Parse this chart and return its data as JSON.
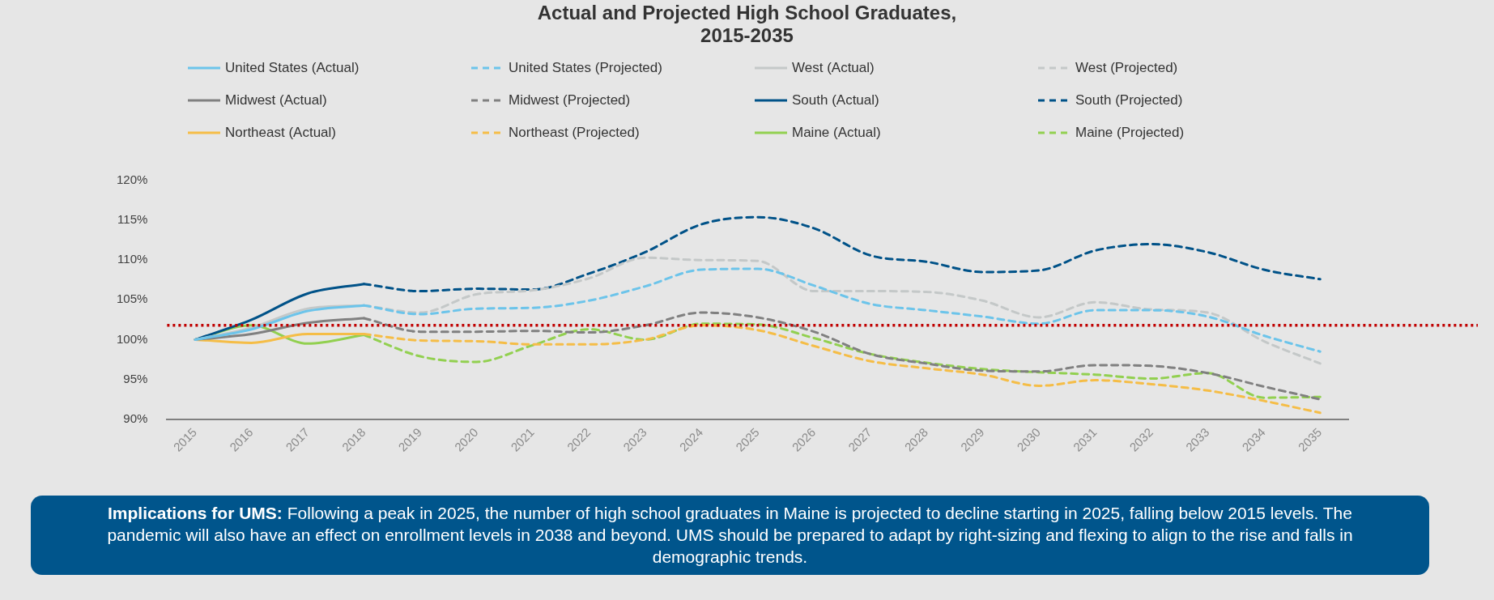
{
  "chart_data": {
    "type": "line",
    "title": "Actual and Projected High School Graduates,\n2015-2035",
    "categories": [
      "2015",
      "2016",
      "2017",
      "2018",
      "2019",
      "2020",
      "2021",
      "2022",
      "2023",
      "2024",
      "2025",
      "2026",
      "2027",
      "2028",
      "2029",
      "2030",
      "2031",
      "2032",
      "2033",
      "2034",
      "2035"
    ],
    "ylim": [
      90,
      120
    ],
    "yticks": [
      {
        "value": 90,
        "label": "90%"
      },
      {
        "value": 95,
        "label": "95%"
      },
      {
        "value": 100,
        "label": "100%"
      },
      {
        "value": 105,
        "label": "105%"
      },
      {
        "value": 110,
        "label": "110%"
      },
      {
        "value": 115,
        "label": "115%"
      },
      {
        "value": 120,
        "label": "120%"
      }
    ],
    "grid": false,
    "legend": "top",
    "marker": "none",
    "series": [
      {
        "name": "United States (Actual)",
        "color": "#6cc4ea",
        "line_style": "solid",
        "values": [
          100,
          101.3,
          103.6,
          104.3,
          null,
          null,
          null,
          null,
          null,
          null,
          null,
          null,
          null,
          null,
          null,
          null,
          null,
          null,
          null,
          null,
          null
        ]
      },
      {
        "name": "United States (Projected)",
        "color": "#6cc4ea",
        "line_style": "dashed",
        "values": [
          null,
          null,
          null,
          104.3,
          103.2,
          103.9,
          104,
          104.9,
          106.7,
          108.8,
          108.9,
          106.8,
          104.5,
          103.7,
          102.9,
          102,
          103.7,
          103.7,
          102.9,
          100.5,
          98.5
        ]
      },
      {
        "name": "West (Actual)",
        "color": "#c4c8c8",
        "line_style": "solid",
        "values": [
          100,
          101.5,
          103.9,
          104.3,
          null,
          null,
          null,
          null,
          null,
          null,
          null,
          null,
          null,
          null,
          null,
          null,
          null,
          null,
          null,
          null,
          null
        ]
      },
      {
        "name": "West (Projected)",
        "color": "#c4c8c8",
        "line_style": "dashed",
        "values": [
          null,
          null,
          null,
          104.3,
          103.4,
          105.7,
          106.2,
          107.7,
          110.3,
          110,
          109.9,
          106.1,
          106.1,
          106,
          104.9,
          102.8,
          104.7,
          103.8,
          103.4,
          99.8,
          97
        ]
      },
      {
        "name": "Midwest (Actual)",
        "color": "#808080",
        "line_style": "solid",
        "values": [
          100,
          100.7,
          102.1,
          102.7,
          null,
          null,
          null,
          null,
          null,
          null,
          null,
          null,
          null,
          null,
          null,
          null,
          null,
          null,
          null,
          null,
          null
        ]
      },
      {
        "name": "Midwest (Projected)",
        "color": "#808080",
        "line_style": "dashed",
        "values": [
          null,
          null,
          null,
          102.7,
          101,
          101,
          101.1,
          100.9,
          101.8,
          103.4,
          102.8,
          101,
          98.2,
          97,
          96.1,
          96,
          96.8,
          96.7,
          95.8,
          94.1,
          92.5
        ]
      },
      {
        "name": "South (Actual)",
        "color": "#005288",
        "line_style": "solid",
        "values": [
          100,
          102.5,
          105.8,
          107,
          null,
          null,
          null,
          null,
          null,
          null,
          null,
          null,
          null,
          null,
          null,
          null,
          null,
          null,
          null,
          null,
          null
        ]
      },
      {
        "name": "South (Projected)",
        "color": "#005288",
        "line_style": "dashed",
        "values": [
          null,
          null,
          null,
          107,
          106.1,
          106.4,
          106.3,
          108.3,
          111,
          114.5,
          115.4,
          114,
          110.6,
          109.8,
          108.5,
          108.7,
          111.2,
          112,
          111,
          108.8,
          107.6
        ]
      },
      {
        "name": "Northeast (Actual)",
        "color": "#f5bd47",
        "line_style": "solid",
        "values": [
          100,
          99.6,
          100.7,
          100.7,
          null,
          null,
          null,
          null,
          null,
          null,
          null,
          null,
          null,
          null,
          null,
          null,
          null,
          null,
          null,
          null,
          null
        ]
      },
      {
        "name": "Northeast (Projected)",
        "color": "#f5bd47",
        "line_style": "dashed",
        "values": [
          null,
          null,
          null,
          100.7,
          99.9,
          99.8,
          99.4,
          99.4,
          100,
          101.8,
          101.2,
          99.2,
          97.3,
          96.4,
          95.6,
          94.2,
          94.9,
          94.4,
          93.6,
          92.3,
          90.8
        ]
      },
      {
        "name": "Maine (Actual)",
        "color": "#92d050",
        "line_style": "solid",
        "values": [
          100,
          101.8,
          99.5,
          100.6,
          null,
          null,
          null,
          null,
          null,
          null,
          null,
          null,
          null,
          null,
          null,
          null,
          null,
          null,
          null,
          null,
          null
        ]
      },
      {
        "name": "Maine (Projected)",
        "color": "#92d050",
        "line_style": "dashed",
        "values": [
          null,
          null,
          null,
          100.6,
          97.9,
          97.2,
          99.3,
          101.3,
          100,
          102,
          101.9,
          100.2,
          98.2,
          97.1,
          96.3,
          95.9,
          95.6,
          95.1,
          95.8,
          92.7,
          92.8
        ]
      }
    ],
    "ref_lines": [
      {
        "axis": "y",
        "value": 101.8,
        "color": "#c00000",
        "line_style": "dotted"
      }
    ],
    "annotations": [
      "Implications for UMS: Following a peak in 2025, the number of high school graduates in Maine is projected to decline starting in 2025, falling below 2015 levels. The pandemic will also have an effect on enrollment levels in 2038 and beyond. UMS should be prepared to adapt by right-sizing and flexing to align to the rise and falls in demographic trends."
    ]
  }
}
